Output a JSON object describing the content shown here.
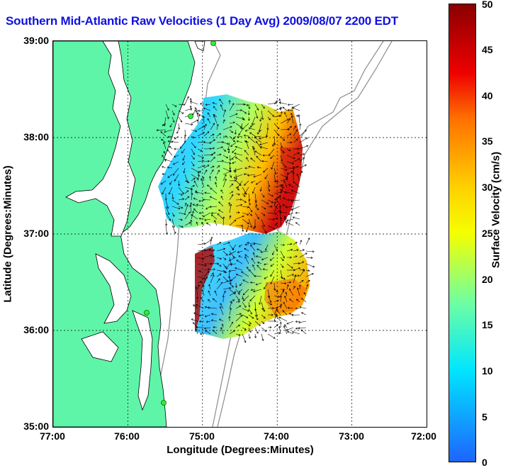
{
  "title": "Southern Mid-Atlantic Raw Velocities (1 Day Avg) 2009/08/07 2200 EDT",
  "map": {
    "x_axis_label": "Longitude (Degrees:Minutes)",
    "y_axis_label": "Latitude (Degrees:Minutes)",
    "x_ticks": [
      "77:00",
      "76:00",
      "75:00",
      "74:00",
      "73:00",
      "72:00"
    ],
    "y_ticks": [
      "39:00",
      "38:00",
      "37:00",
      "36:00",
      "35:00"
    ],
    "lon_range": [
      -77,
      -72
    ],
    "lat_range": [
      35,
      39
    ],
    "grid": "dotted",
    "land_color": "#5ff5a8",
    "bathymetry_color": "#8c8c8c"
  },
  "colorbar": {
    "label": "Surface Velocity (cm/s)",
    "ticks": [
      "0",
      "5",
      "10",
      "15",
      "20",
      "25",
      "30",
      "35",
      "40",
      "45",
      "50"
    ],
    "min": 0,
    "max": 50,
    "colors": [
      "#1e64ff",
      "#00e6ff",
      "#70ffa0",
      "#f5ff00",
      "#ffd000",
      "#ff7000",
      "#ee0000",
      "#8a0000"
    ]
  },
  "stations": [
    {
      "lat": 39.0,
      "lon": -75.1
    },
    {
      "lat": 38.23,
      "lon": -75.15
    },
    {
      "lat": 36.2,
      "lon": -75.75
    },
    {
      "lat": 35.25,
      "lon": -75.5
    }
  ]
}
